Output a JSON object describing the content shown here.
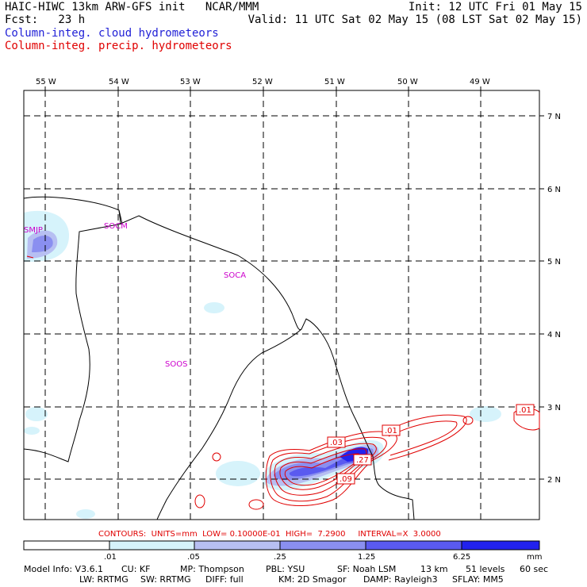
{
  "header": {
    "title_line1": "HAIC-HIWC 13km ARW-GFS init   NCAR/MMM",
    "title_line2": "Fcst:   23 h",
    "init": "Init: 12 UTC Fri 01 May 15",
    "valid": "Valid: 11 UTC Sat 02 May 15 (08 LST Sat 02 May 15)",
    "legend_cloud": "Column-integ. cloud hydrometeors",
    "legend_precip": "Column-integ. precip. hydrometeors",
    "legend_cloud_color": "#1f1fd6",
    "legend_precip_color": "#e00000"
  },
  "axes": {
    "lon_labels": [
      "55 W",
      "54 W",
      "53 W",
      "52 W",
      "51 W",
      "50 W",
      "49 W"
    ],
    "lat_labels": [
      "7 N",
      "6 N",
      "5 N",
      "4 N",
      "3 N",
      "2 N"
    ]
  },
  "stations": [
    "SMJP",
    "SOCM",
    "SOCA",
    "SOOS"
  ],
  "contour_labels": [
    ".03",
    ".01",
    ".27",
    ".09",
    ".01"
  ],
  "contour_info": "CONTOURS:  UNITS=mm  LOW= 0.10000E-01  HIGH=  7.2900     INTERVAL=X  3.0000",
  "colorbar": {
    "ticks": [
      ".01",
      ".05",
      ".25",
      "1.25",
      "6.25"
    ],
    "unit": "mm",
    "colors": [
      "#ffffff",
      "#d6f3fb",
      "#b7bff2",
      "#8a8ff0",
      "#5a5af0",
      "#2222ee"
    ]
  },
  "footer": {
    "line1": [
      "Model Info: V3.6.1",
      "CU: KF",
      "MP: Thompson",
      "PBL: YSU",
      "SF: Noah LSM",
      "13 km",
      "51 levels",
      "60 sec"
    ],
    "line2": [
      "LW: RRTMG",
      "SW: RRTMG",
      "DIFF: full",
      "KM: 2D Smagor",
      "DAMP: Rayleigh3",
      "SFLAY: MM5"
    ]
  }
}
